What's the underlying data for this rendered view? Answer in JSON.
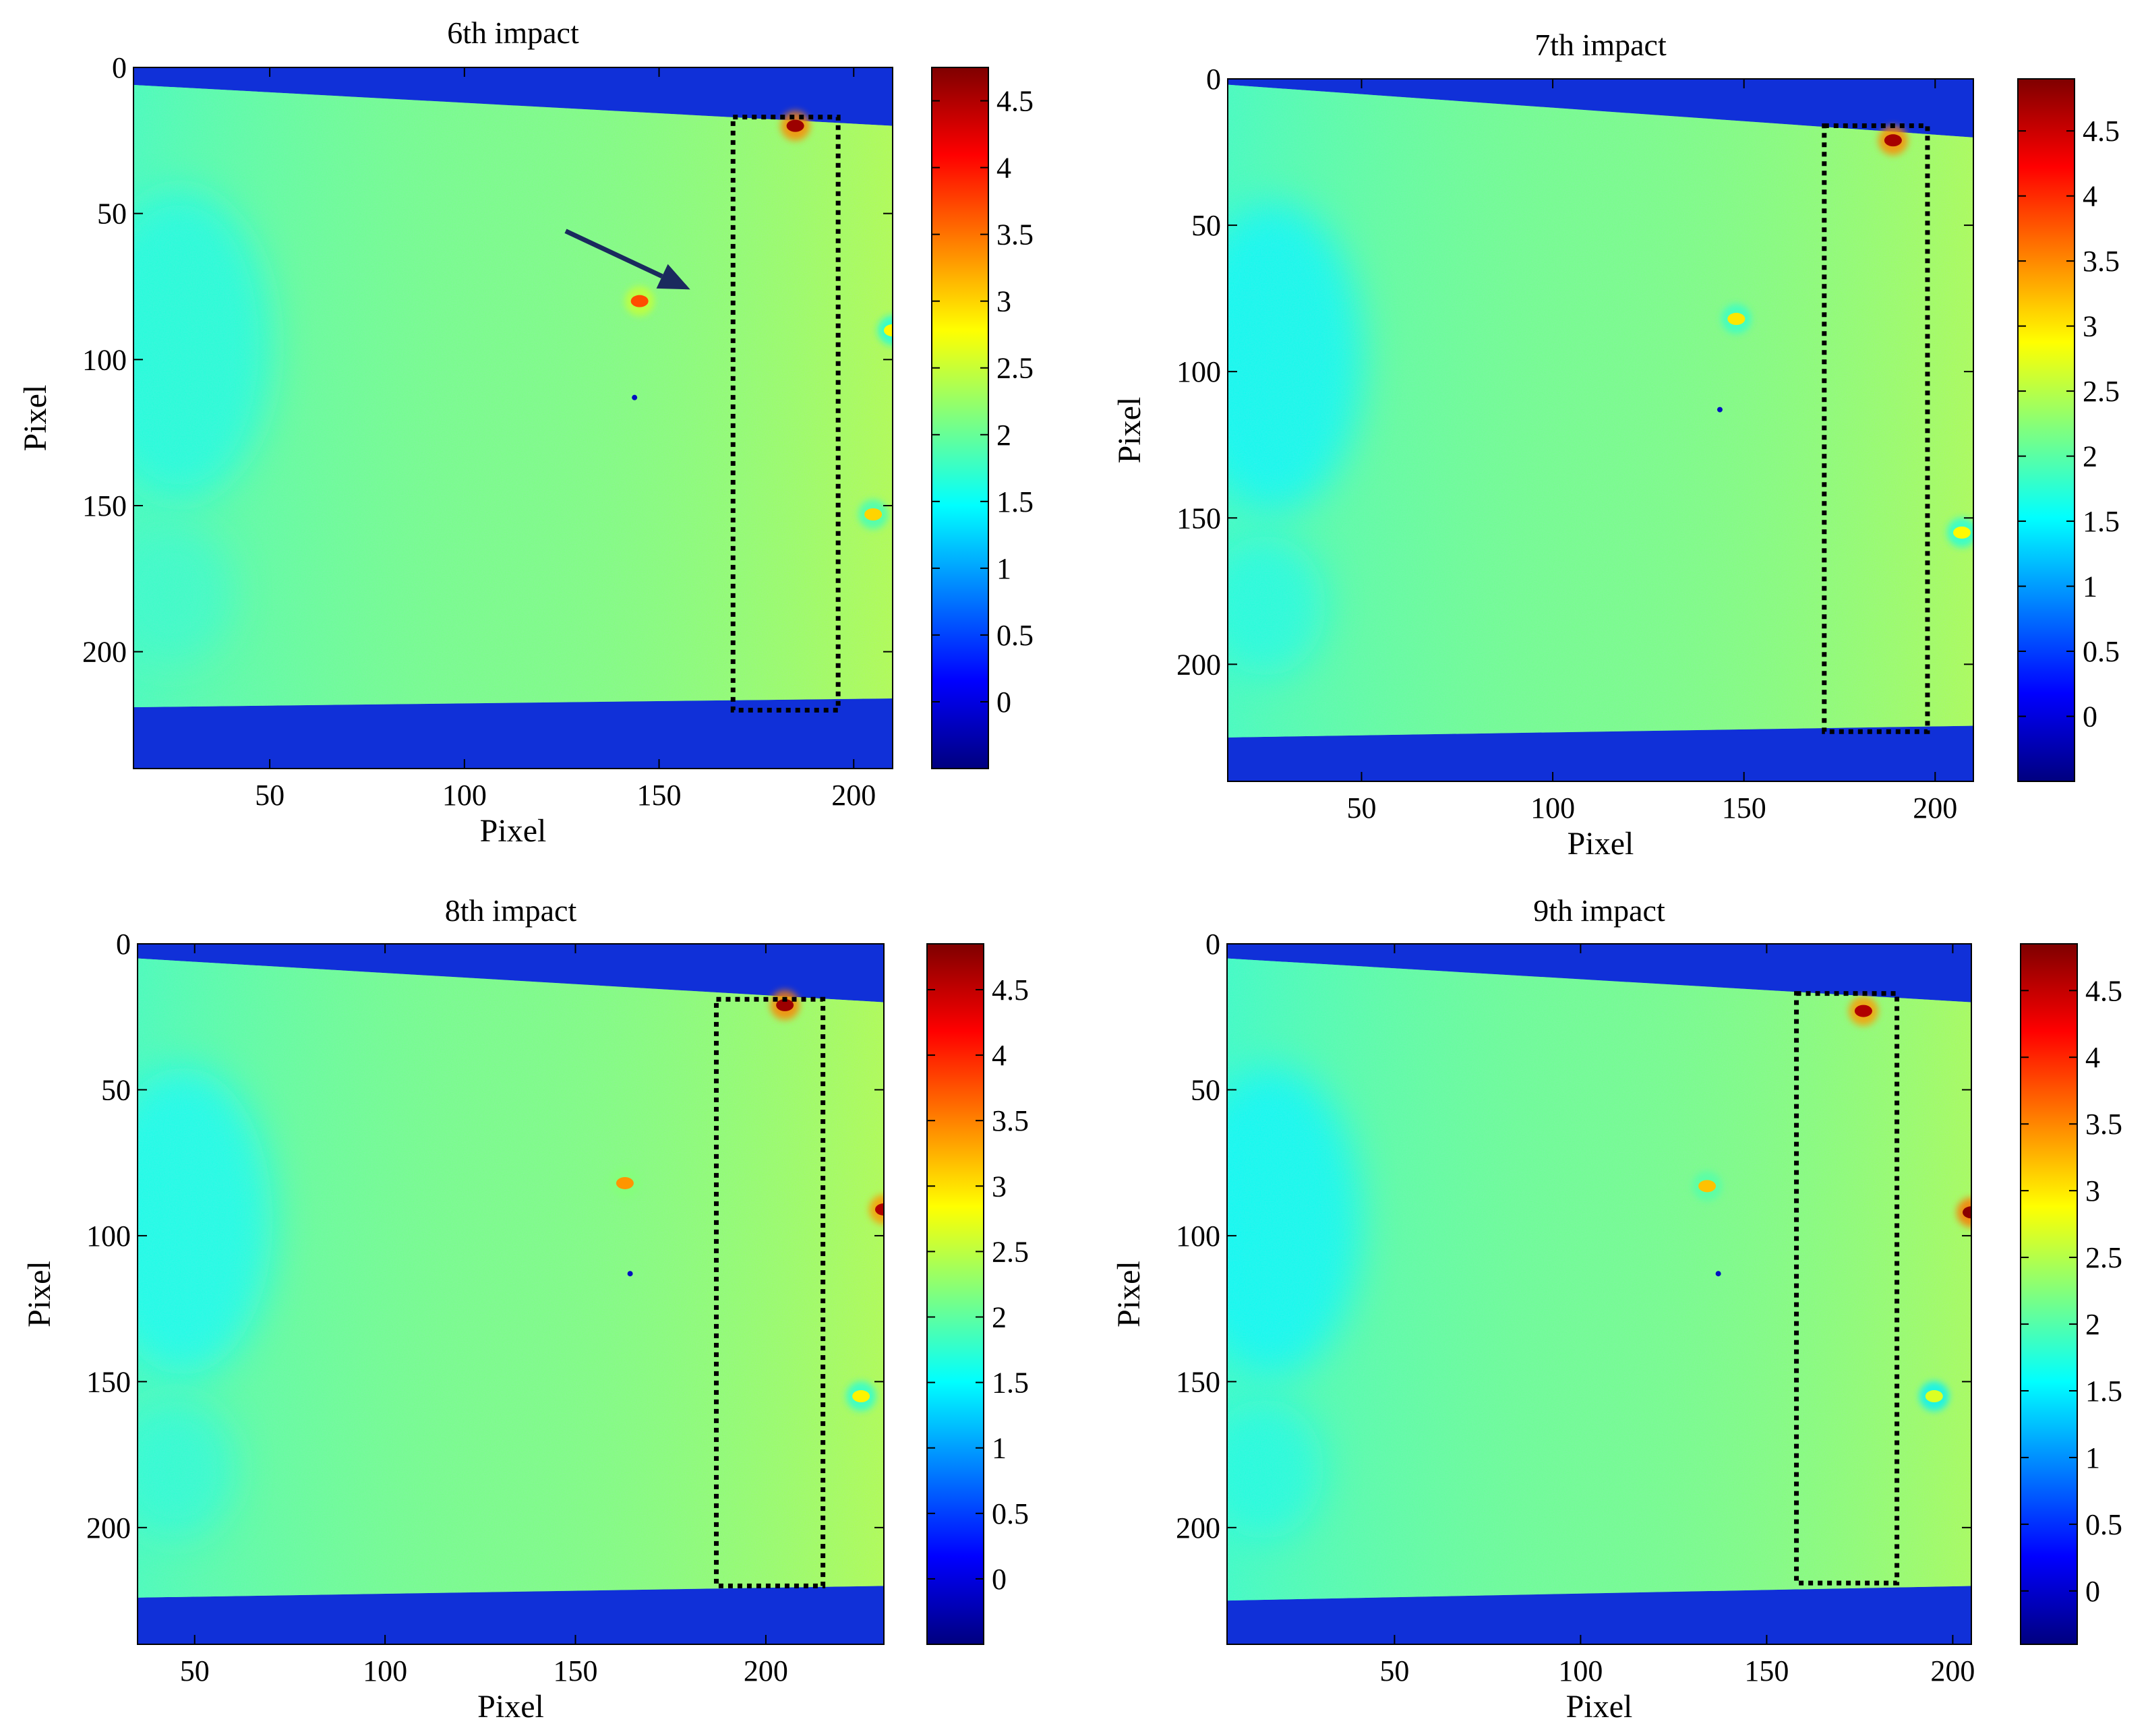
{
  "colormap": {
    "name": "jet",
    "stops": [
      "#00007f",
      "#0000ff",
      "#007fff",
      "#00ffff",
      "#7fff7f",
      "#ffff00",
      "#ff7f00",
      "#ff0000",
      "#7f0000"
    ]
  },
  "colors": {
    "region_box": "#000000",
    "arrow": "#1a2a5e",
    "background_band": "#1030d8"
  },
  "chart_data": [
    {
      "type": "heatmap",
      "title": "6th impact",
      "xlabel": "Pixel",
      "ylabel": "Pixel",
      "xlim": [
        15,
        210
      ],
      "ylim": [
        240,
        0
      ],
      "xticks": [
        50,
        100,
        150,
        200
      ],
      "yticks": [
        0,
        50,
        100,
        150,
        200
      ],
      "clim": [
        -0.5,
        4.75
      ],
      "cticks": [
        0,
        0.5,
        1,
        1.5,
        2,
        2.5,
        3,
        3.5,
        4,
        4.5
      ],
      "specimen": {
        "top_edge": [
          6,
          20
        ],
        "bottom_edge": [
          219,
          216
        ],
        "field_value": 2.1,
        "left_patch_value": 1.6
      },
      "hotspots": [
        {
          "x": 185,
          "y": 20,
          "value": 4.6
        },
        {
          "x": 145,
          "y": 80,
          "value": 3.7
        },
        {
          "x": 205,
          "y": 153,
          "value": 3.0
        },
        {
          "x": 210,
          "y": 90,
          "value": 2.8
        }
      ],
      "region": {
        "x0": 169,
        "x1": 196,
        "y0": 17,
        "y1": 220
      },
      "arrow": {
        "from": [
          126,
          56
        ],
        "to": [
          158,
          76
        ]
      }
    },
    {
      "type": "heatmap",
      "title": "7th impact",
      "xlabel": "Pixel",
      "ylabel": "Pixel",
      "xlim": [
        15,
        210
      ],
      "ylim": [
        240,
        0
      ],
      "xticks": [
        50,
        100,
        150,
        200
      ],
      "yticks": [
        0,
        50,
        100,
        150,
        200
      ],
      "clim": [
        -0.5,
        4.9
      ],
      "cticks": [
        0,
        0.5,
        1,
        1.5,
        2,
        2.5,
        3,
        3.5,
        4,
        4.5
      ],
      "specimen": {
        "top_edge": [
          2,
          20
        ],
        "bottom_edge": [
          225,
          221
        ],
        "field_value": 2.15,
        "left_patch_value": 1.5
      },
      "hotspots": [
        {
          "x": 189,
          "y": 21,
          "value": 4.7
        },
        {
          "x": 148,
          "y": 82,
          "value": 3.0
        },
        {
          "x": 207,
          "y": 155,
          "value": 2.9
        }
      ],
      "region": {
        "x0": 171,
        "x1": 198,
        "y0": 16,
        "y1": 223
      }
    },
    {
      "type": "heatmap",
      "title": "8th impact",
      "xlabel": "Pixel",
      "ylabel": "Pixel",
      "xlim": [
        35,
        231
      ],
      "ylim": [
        240,
        0
      ],
      "xticks": [
        50,
        100,
        150,
        200
      ],
      "yticks": [
        0,
        50,
        100,
        150,
        200
      ],
      "clim": [
        -0.5,
        4.85
      ],
      "cticks": [
        0,
        0.5,
        1,
        1.5,
        2,
        2.5,
        3,
        3.5,
        4,
        4.5
      ],
      "specimen": {
        "top_edge": [
          5,
          20
        ],
        "bottom_edge": [
          224,
          220
        ],
        "field_value": 2.15,
        "left_patch_value": 1.55
      },
      "hotspots": [
        {
          "x": 205,
          "y": 21,
          "value": 4.7
        },
        {
          "x": 163,
          "y": 82,
          "value": 3.4
        },
        {
          "x": 231,
          "y": 91,
          "value": 4.6
        },
        {
          "x": 225,
          "y": 155,
          "value": 2.9
        }
      ],
      "region": {
        "x0": 187,
        "x1": 215,
        "y0": 19,
        "y1": 220
      }
    },
    {
      "type": "heatmap",
      "title": "9th impact",
      "xlabel": "Pixel",
      "ylabel": "Pixel",
      "xlim": [
        5,
        205
      ],
      "ylim": [
        240,
        0
      ],
      "xticks": [
        50,
        100,
        150,
        200
      ],
      "yticks": [
        0,
        50,
        100,
        150,
        200
      ],
      "clim": [
        -0.4,
        4.85
      ],
      "cticks": [
        0,
        0.5,
        1,
        1.5,
        2,
        2.5,
        3,
        3.5,
        4,
        4.5
      ],
      "specimen": {
        "top_edge": [
          5,
          20
        ],
        "bottom_edge": [
          225,
          220
        ],
        "field_value": 2.15,
        "left_patch_value": 1.55
      },
      "hotspots": [
        {
          "x": 176,
          "y": 23,
          "value": 4.6
        },
        {
          "x": 134,
          "y": 83,
          "value": 3.2
        },
        {
          "x": 205,
          "y": 92,
          "value": 4.8
        },
        {
          "x": 195,
          "y": 155,
          "value": 2.7
        }
      ],
      "region": {
        "x0": 158,
        "x1": 185,
        "y0": 17,
        "y1": 219
      }
    }
  ]
}
